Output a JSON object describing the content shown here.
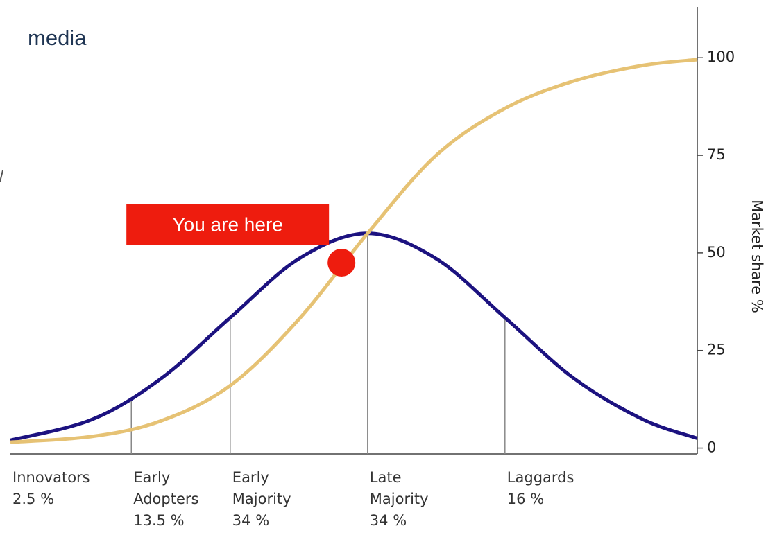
{
  "heading": "media",
  "chart_data": {
    "type": "line",
    "x": [
      -2.6,
      -2,
      -1.5,
      -1,
      -0.5,
      0,
      0.5,
      1,
      1.5,
      2,
      2.4
    ],
    "xlim": [
      -2.6,
      2.4
    ],
    "ylim": [
      -1.5,
      113
    ],
    "yticks": [
      0,
      25,
      50,
      75,
      100
    ],
    "y_axis_side": "right",
    "ylabel": "Market share %",
    "series": [
      {
        "color": "#1c1280",
        "values": [
          2,
          7.4,
          17.9,
          33.4,
          48.5,
          55,
          48.5,
          33.4,
          17.9,
          7.4,
          2.5
        ]
      },
      {
        "color": "#e6c274",
        "values": [
          1.5,
          3,
          7,
          16,
          33,
          55,
          75,
          87,
          94,
          98,
          99.5
        ]
      }
    ],
    "dividers": [
      -1.72,
      -1,
      0,
      1
    ],
    "categories": [
      "Innovators",
      "Early Adopters",
      "Early Majority",
      "Late Majority",
      "Laggards"
    ],
    "values": [
      2.5,
      13.5,
      34,
      34,
      16
    ],
    "value_labels": [
      "2.5 %",
      "13.5 %",
      "34 %",
      "34 %",
      "16 %"
    ],
    "annotation": {
      "text": "You are here",
      "x": -0.19,
      "y": 47.5,
      "color": "#ee1c0e"
    }
  }
}
